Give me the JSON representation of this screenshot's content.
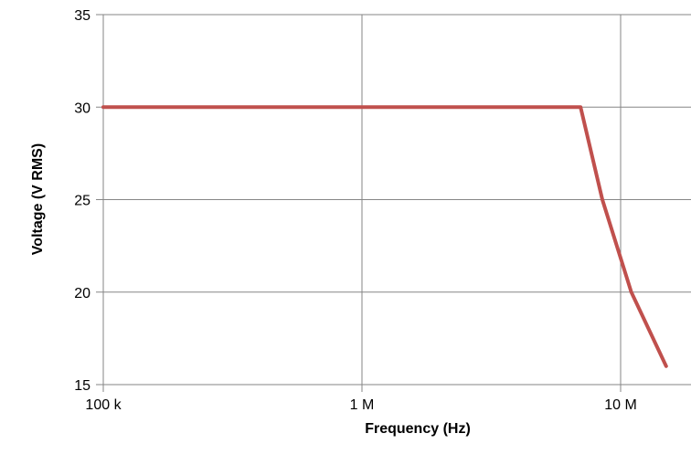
{
  "chart_data": {
    "type": "line",
    "title": "",
    "xlabel": "Frequency (Hz)",
    "ylabel": "Voltage (V RMS)",
    "x_scale": "log",
    "xlim": [
      100000,
      16500000
    ],
    "ylim": [
      15,
      35
    ],
    "x_ticks": [
      {
        "value": 100000,
        "label": "100 k"
      },
      {
        "value": 1000000,
        "label": "1 M"
      },
      {
        "value": 10000000,
        "label": "10 M"
      }
    ],
    "y_ticks": [
      {
        "value": 15,
        "label": "15"
      },
      {
        "value": 20,
        "label": "20"
      },
      {
        "value": 25,
        "label": "25"
      },
      {
        "value": 30,
        "label": "30"
      },
      {
        "value": 35,
        "label": "35"
      }
    ],
    "grid": {
      "horizontal": true,
      "vertical": true
    },
    "legend": "none",
    "series": [
      {
        "color": "#c0504d",
        "points": [
          {
            "x": 100000,
            "y": 30
          },
          {
            "x": 7000000,
            "y": 30
          },
          {
            "x": 8500000,
            "y": 25
          },
          {
            "x": 11000000,
            "y": 20
          },
          {
            "x": 15000000,
            "y": 16
          }
        ]
      }
    ],
    "colors": {
      "grid": "#868686",
      "axis": "#868686",
      "line": "#c0504d"
    }
  }
}
